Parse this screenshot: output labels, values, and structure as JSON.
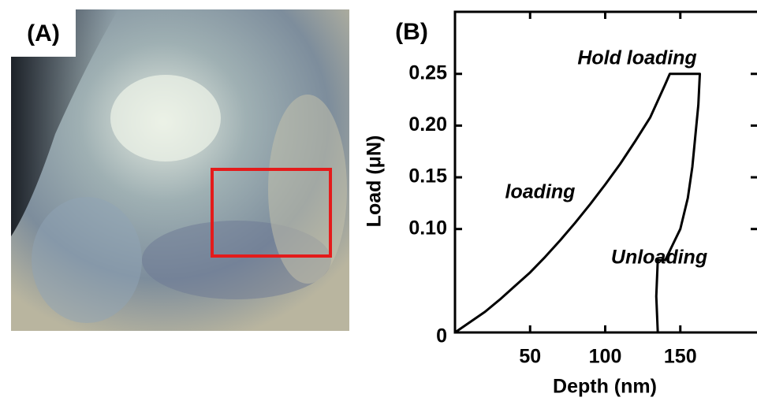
{
  "panel_labels": [
    "(A)",
    "(B)"
  ],
  "chart_data": {
    "type": "line",
    "xlabel": "Depth (nm)",
    "ylabel": "Load (μN)",
    "annotations": [
      "Hold loading",
      "loading",
      "Unloading"
    ],
    "x": [
      0,
      10,
      20,
      30,
      40,
      50,
      60,
      70,
      80,
      90,
      100,
      110,
      120,
      130,
      140,
      143,
      150,
      163,
      162,
      160,
      158,
      155,
      150,
      145,
      140,
      135,
      134,
      135
    ],
    "series": [
      {
        "color": "#000000",
        "values": [
          0,
          0.01,
          0.02,
          0.032,
          0.045,
          0.058,
          0.073,
          0.089,
          0.106,
          0.124,
          0.143,
          0.163,
          0.185,
          0.208,
          0.24,
          0.25,
          0.25,
          0.25,
          0.22,
          0.19,
          0.16,
          0.13,
          0.1,
          0.085,
          0.07,
          0.07,
          0.035,
          0
        ]
      }
    ],
    "xlim": [
      0,
      200
    ],
    "ylim": [
      0,
      0.31
    ],
    "xticks": [
      50,
      100,
      150
    ],
    "yticks": [
      0,
      {
        "value": 0.1,
        "label": "0.10"
      },
      0.15,
      {
        "value": 0.2,
        "label": "0.20"
      },
      0.25
    ]
  }
}
